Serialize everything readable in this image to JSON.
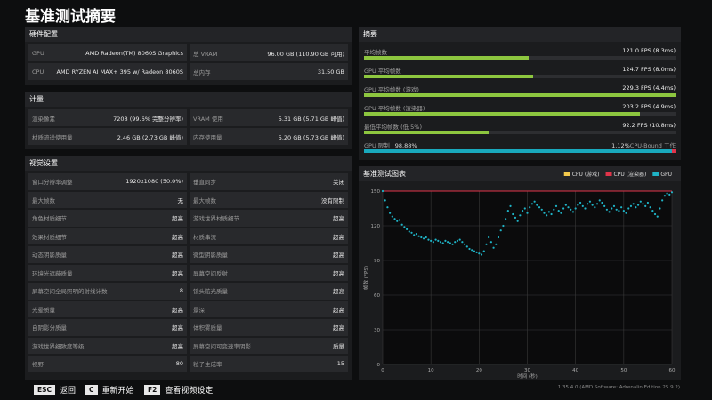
{
  "title": "基准测试摘要",
  "hardware": {
    "title": "硬件配置",
    "rows": [
      [
        "GPU",
        "AMD Radeon(TM) 8060S Graphics",
        "总 VRAM",
        "96.00 GB (110.90 GB 可用)"
      ],
      [
        "CPU",
        "AMD RYZEN AI MAX+ 395 w/ Radeon 8060S",
        "总内存",
        "31.50 GB"
      ]
    ]
  },
  "metrics": {
    "title": "计量",
    "rows": [
      [
        "渲染像素",
        "7208 (99.6% 完整分辨率)",
        "VRAM 使用",
        "5.31 GB (5.71 GB 峰值)"
      ],
      [
        "材质流送使用量",
        "2.46 GB (2.73 GB 峰值)",
        "内存使用量",
        "5.20 GB (5.73 GB 峰值)"
      ]
    ]
  },
  "visual": {
    "title": "视觉设置",
    "rows": [
      [
        "窗口分辨率调整",
        "1920x1080 (50.0%)",
        "垂直同步",
        "关闭"
      ],
      [
        "最大帧数",
        "无",
        "最大帧数",
        "没有限制"
      ],
      [
        "角色材质细节",
        "超高",
        "游戏世界材质细节",
        "超高"
      ],
      [
        "效果材质细节",
        "超高",
        "材质串流",
        "超高"
      ],
      [
        "动态阴影质量",
        "超高",
        "微型阴影质量",
        "超高"
      ],
      [
        "环境光遮蔽质量",
        "超高",
        "屏幕空间反射",
        "超高"
      ],
      [
        "屏幕空间全局照明的射线计数",
        "8",
        "镜头眩光质量",
        "超高"
      ],
      [
        "光晕质量",
        "超高",
        "景深",
        "超高"
      ],
      [
        "自阴影分质量",
        "超高",
        "体积雾质量",
        "超高"
      ],
      [
        "游戏世界细致度等级",
        "超高",
        "屏幕空间可变速率阴影",
        "质量"
      ],
      [
        "视野",
        "80",
        "粒子生成率",
        "15"
      ]
    ]
  },
  "summary": {
    "title": "摘要",
    "rows": [
      {
        "label": "平均帧数",
        "fps": 121.0,
        "value_label": "121.0 FPS (8.3ms)"
      },
      {
        "label": "GPU 平均帧数",
        "fps": 124.7,
        "value_label": "124.7 FPS (8.0ms)"
      },
      {
        "label": "GPU 平均帧数 (游戏)",
        "fps": 229.3,
        "value_label": "229.3 FPS (4.4ms)"
      },
      {
        "label": "GPU 平均帧数 (渲染器)",
        "fps": 203.2,
        "value_label": "203.2 FPS (4.9ms)"
      },
      {
        "label": "最低平均帧数 (低 5%)",
        "fps": 92.2,
        "value_label": "92.2 FPS (10.8ms)"
      }
    ],
    "gpu_limit": {
      "label": "GPU 限制",
      "gpu_percent": 98.88,
      "gpu_label": "98.88%",
      "cpu_percent": 1.12,
      "cpu_label": "1.12%",
      "cpu_text": "CPU-Bound 工作"
    }
  },
  "chart_data": {
    "type": "scatter",
    "title": "基准测试图表",
    "x_label": "时间 (秒)",
    "y_label": "帧数 (FPS)",
    "xlim": [
      0,
      60
    ],
    "ylim": [
      0,
      150
    ],
    "xticks": [
      0,
      10,
      20,
      30,
      40,
      50,
      60
    ],
    "yticks": [
      0,
      30,
      60,
      90,
      120,
      150
    ],
    "grid": true,
    "series": [
      {
        "name": "CPU (游戏)",
        "color": "#f2c94c",
        "x": [],
        "values": []
      },
      {
        "name": "CPU (渲染器)",
        "color": "#e0344a",
        "x": [
          0,
          60
        ],
        "values": [
          150,
          150
        ]
      },
      {
        "name": "GPU",
        "color": "#1fb3c6",
        "x": [
          0,
          0.5,
          1,
          1.5,
          2,
          2.5,
          3,
          3.5,
          4,
          4.5,
          5,
          5.5,
          6,
          6.5,
          7,
          7.5,
          8,
          8.5,
          9,
          9.5,
          10,
          10.5,
          11,
          11.5,
          12,
          12.5,
          13,
          13.5,
          14,
          14.5,
          15,
          15.5,
          16,
          16.5,
          17,
          17.5,
          18,
          18.5,
          19,
          19.5,
          20,
          20.5,
          21,
          21.5,
          22,
          22.5,
          23,
          23.5,
          24,
          24.5,
          25,
          25.5,
          26,
          26.5,
          27,
          27.5,
          28,
          28.5,
          29,
          29.5,
          30,
          30.5,
          31,
          31.5,
          32,
          32.5,
          33,
          33.5,
          34,
          34.5,
          35,
          35.5,
          36,
          36.5,
          37,
          37.5,
          38,
          38.5,
          39,
          39.5,
          40,
          40.5,
          41,
          41.5,
          42,
          42.5,
          43,
          43.5,
          44,
          44.5,
          45,
          45.5,
          46,
          46.5,
          47,
          47.5,
          48,
          48.5,
          49,
          49.5,
          50,
          50.5,
          51,
          51.5,
          52,
          52.5,
          53,
          53.5,
          54,
          54.5,
          55,
          55.5,
          56,
          56.5,
          57,
          57.5,
          58,
          58.5,
          59,
          59.5,
          60
        ],
        "values": [
          150,
          142,
          136,
          131,
          128,
          126,
          124,
          125,
          121,
          119,
          117,
          115,
          114,
          112,
          113,
          111,
          110,
          109,
          110,
          108,
          107,
          106,
          108,
          107,
          106,
          105,
          107,
          106,
          105,
          104,
          106,
          107,
          108,
          106,
          104,
          102,
          100,
          99,
          98,
          97,
          96,
          95,
          98,
          104,
          110,
          106,
          101,
          104,
          110,
          116,
          120,
          126,
          133,
          137,
          130,
          127,
          124,
          129,
          133,
          135,
          131,
          136,
          139,
          141,
          138,
          136,
          134,
          131,
          129,
          132,
          130,
          134,
          137,
          133,
          131,
          135,
          138,
          136,
          134,
          132,
          135,
          138,
          140,
          137,
          135,
          139,
          141,
          138,
          136,
          139,
          142,
          140,
          137,
          134,
          132,
          135,
          137,
          134,
          133,
          136,
          133,
          131,
          135,
          137,
          139,
          136,
          138,
          141,
          139,
          137,
          140,
          136,
          133,
          130,
          128,
          135,
          142,
          146,
          148,
          147,
          149
        ]
      }
    ]
  },
  "footer": {
    "keys": [
      {
        "key": "ESC",
        "label": "返回"
      },
      {
        "key": "C",
        "label": "重新开始"
      },
      {
        "key": "F2",
        "label": "查看视频设定"
      }
    ],
    "version": "1.35.4.0 (AMD Software: Adrenalin Edition 25.9.2)"
  }
}
